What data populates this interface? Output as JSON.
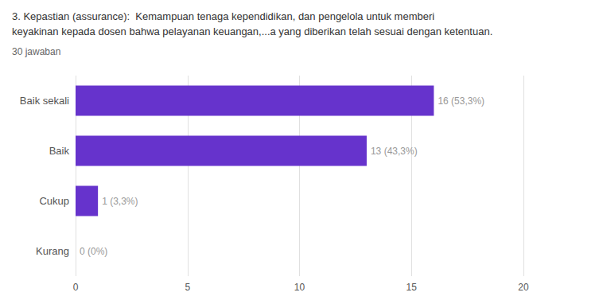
{
  "chart_data": {
    "type": "bar",
    "orientation": "horizontal",
    "title": "3. Kepastian (assurance):  Kemampuan tenaga kependidikan, dan pengelola untuk memberi\nkeyakinan kepada dosen bahwa pelayanan keuangan,...a yang diberikan telah sesuai dengan ketentuan.",
    "subtitle": "30 jawaban",
    "categories": [
      "Baik sekali",
      "Baik",
      "Cukup",
      "Kurang"
    ],
    "values": [
      16,
      13,
      1,
      0
    ],
    "value_labels": [
      "16 (53,3%)",
      "13 (43,3%)",
      "1 (3,3%)",
      "0 (0%)"
    ],
    "data_labels": true,
    "color": "#6633cc",
    "xlim": [
      0,
      20
    ],
    "xticks": [
      0,
      5,
      10,
      15,
      20
    ],
    "grid": true
  }
}
